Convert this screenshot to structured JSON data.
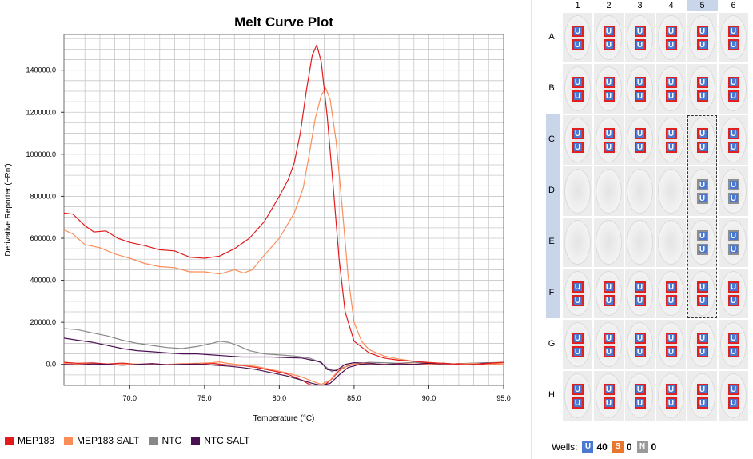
{
  "chart_data": {
    "type": "line",
    "title": "Melt Curve Plot",
    "xlabel": "Temperature (°C)",
    "ylabel": "Derivative Reporter (−Rn')",
    "xlim": [
      65.6,
      95.0
    ],
    "ylim": [
      -10000,
      157000
    ],
    "xticks": [
      70.0,
      75.0,
      80.0,
      85.0,
      90.0,
      95.0
    ],
    "xtick_labels": [
      "70.0",
      "75.0",
      "80.0",
      "85.0",
      "90.0",
      "95.0"
    ],
    "yticks": [
      0,
      20000,
      40000,
      60000,
      80000,
      100000,
      120000,
      140000
    ],
    "ytick_labels": [
      "0.0",
      "20000.0",
      "40000.0",
      "60000.0",
      "80000.0",
      "100000.0",
      "120000.0",
      "140000.0"
    ],
    "grid": true,
    "legend_position": "bottom-left",
    "series": [
      {
        "name": "MEP183",
        "color": "#e31a1c",
        "x": [
          65.6,
          66.2,
          67.0,
          67.6,
          68.4,
          69.2,
          70.0,
          71.0,
          72.0,
          73.0,
          74.0,
          75.0,
          76.0,
          77.0,
          78.0,
          79.0,
          80.0,
          80.6,
          81.0,
          81.4,
          81.8,
          82.2,
          82.5,
          82.8,
          83.2,
          83.6,
          84.0,
          84.4,
          85.0,
          86.0,
          87.0,
          88.0,
          89.0,
          90.0,
          91.0,
          92.0,
          93.0,
          94.0,
          95.0
        ],
        "y": [
          72000,
          71500,
          66000,
          63000,
          63500,
          60000,
          58000,
          56500,
          54500,
          54000,
          51000,
          50500,
          51500,
          55000,
          60000,
          68000,
          80000,
          88000,
          96000,
          110000,
          130000,
          147000,
          152000,
          144000,
          118000,
          85000,
          50000,
          25000,
          11000,
          5500,
          3000,
          2000,
          1500,
          800,
          500,
          0,
          -300,
          500,
          1000
        ]
      },
      {
        "name": "MEP183 SALT",
        "color": "#fc8d59",
        "x": [
          65.6,
          66.2,
          67.0,
          68.0,
          69.0,
          70.0,
          71.0,
          72.0,
          73.0,
          74.0,
          75.0,
          76.0,
          77.0,
          77.6,
          78.2,
          79.0,
          80.0,
          81.0,
          81.6,
          82.0,
          82.4,
          82.8,
          83.1,
          83.4,
          83.8,
          84.2,
          84.6,
          85.0,
          85.5,
          86.0,
          87.0,
          88.0,
          89.0,
          90.0,
          91.0,
          92.0,
          93.0,
          94.0,
          95.0
        ],
        "y": [
          64000,
          62000,
          57000,
          55500,
          52500,
          50500,
          48000,
          46500,
          46000,
          44000,
          44000,
          43000,
          45000,
          43500,
          45000,
          52000,
          60000,
          72000,
          84000,
          100000,
          117000,
          128000,
          131500,
          126000,
          106000,
          75000,
          42000,
          20000,
          11000,
          7000,
          4000,
          2500,
          1500,
          1000,
          300,
          0,
          500,
          0,
          0
        ]
      },
      {
        "name": "NTC",
        "color": "#878787",
        "x": [
          65.6,
          66.5,
          67.5,
          68.5,
          69.5,
          70.5,
          71.5,
          72.5,
          73.5,
          74.5,
          75.5,
          76.0,
          76.6,
          77.2,
          78.0,
          79.0,
          80.0,
          81.0,
          82.0,
          82.6,
          83.0,
          83.5,
          84.0,
          85.0,
          86.0,
          87.0,
          88.0,
          89.0,
          90.0,
          91.0,
          92.0,
          93.0,
          94.0,
          95.0
        ],
        "y": [
          17000,
          16500,
          15000,
          13500,
          11500,
          10000,
          9000,
          8000,
          7500,
          8500,
          10000,
          11000,
          10500,
          9000,
          6500,
          5000,
          4500,
          4000,
          3000,
          1500,
          -500,
          -3500,
          -2000,
          0,
          1000,
          800,
          500,
          1000,
          500,
          0,
          300,
          600,
          800,
          1000
        ]
      },
      {
        "name": "NTC SALT",
        "color": "#4a1152",
        "x": [
          65.6,
          66.5,
          67.5,
          68.5,
          69.5,
          70.5,
          71.5,
          72.5,
          73.5,
          74.5,
          75.5,
          76.5,
          77.5,
          78.5,
          79.5,
          80.5,
          81.5,
          82.2,
          82.8,
          83.2,
          83.8,
          84.4,
          85.0,
          86.0,
          87.0,
          88.0,
          89.0,
          90.0,
          91.0,
          92.0,
          93.0,
          94.0,
          95.0
        ],
        "y": [
          12500,
          11500,
          10500,
          9000,
          7500,
          6500,
          6000,
          5500,
          5000,
          5000,
          4500,
          4000,
          3500,
          3500,
          3500,
          3200,
          3000,
          2000,
          1000,
          -2500,
          -3000,
          0,
          800,
          500,
          0,
          300,
          200,
          0,
          500,
          0,
          300,
          600,
          0
        ]
      },
      {
        "name": "",
        "color": "#e31a1c",
        "x": [
          65.6,
          66.5,
          67.5,
          68.5,
          69.5,
          70.5,
          71.5,
          72.5,
          73.5,
          74.5,
          75.5,
          76.5,
          77.5,
          78.5,
          79.5,
          80.5,
          81.0,
          81.5,
          82.0,
          82.5,
          83.0,
          83.5,
          84.0,
          84.6,
          85.2,
          86.0,
          87.0,
          88.0,
          89.0,
          90.0,
          91.0,
          92.0,
          93.0,
          94.0,
          95.0
        ],
        "y": [
          1000,
          500,
          700,
          200,
          600,
          0,
          400,
          -200,
          300,
          0,
          500,
          -300,
          -500,
          -1500,
          -3000,
          -4500,
          -6000,
          -7500,
          -9500,
          -10500,
          -10000,
          -7000,
          -3000,
          -500,
          0,
          500,
          -300,
          400,
          0,
          600,
          -200,
          300,
          0,
          500,
          200
        ]
      },
      {
        "name": "",
        "color": "#fc8d59",
        "x": [
          65.6,
          66.5,
          67.5,
          68.5,
          69.5,
          70.5,
          71.5,
          72.5,
          73.5,
          74.5,
          75.5,
          76.0,
          76.5,
          77.5,
          78.5,
          79.5,
          80.5,
          81.5,
          82.2,
          82.8,
          83.4,
          84.0,
          84.8,
          85.6,
          86.5,
          87.5,
          88.5,
          89.5,
          90.5,
          91.5,
          92.5,
          93.5,
          94.5,
          95.0
        ],
        "y": [
          500,
          0,
          300,
          -200,
          0,
          200,
          -100,
          0,
          300,
          500,
          800,
          1200,
          500,
          -300,
          -1000,
          -2500,
          -4000,
          -6000,
          -8000,
          -9500,
          -7500,
          -2500,
          0,
          400,
          200,
          0,
          300,
          100,
          0,
          -100,
          200,
          0,
          400,
          300
        ]
      },
      {
        "name": "",
        "color": "#4a1152",
        "x": [
          65.6,
          66.5,
          67.5,
          68.5,
          69.5,
          70.5,
          71.5,
          72.5,
          73.5,
          74.5,
          75.5,
          76.5,
          77.5,
          78.5,
          79.5,
          80.5,
          81.5,
          82.2,
          82.8,
          83.4,
          84.0,
          84.6,
          85.4,
          86.2,
          87.0,
          88.0,
          89.0,
          90.0,
          91.0,
          92.0,
          93.0,
          94.0,
          95.0
        ],
        "y": [
          0,
          -300,
          200,
          0,
          -400,
          0,
          300,
          -200,
          0,
          200,
          -300,
          -800,
          -1500,
          -2500,
          -4000,
          -5500,
          -7500,
          -9000,
          -10000,
          -9000,
          -5000,
          -1500,
          0,
          300,
          -100,
          200,
          0,
          500,
          100,
          0,
          300,
          0,
          -200
        ]
      }
    ]
  },
  "legend": [
    {
      "label": "MEP183",
      "color": "#e31a1c"
    },
    {
      "label": "MEP183 SALT",
      "color": "#fc8d59"
    },
    {
      "label": "NTC",
      "color": "#878787"
    },
    {
      "label": "NTC SALT",
      "color": "#4a1152"
    }
  ],
  "plate": {
    "columns": [
      "1",
      "2",
      "3",
      "4",
      "5",
      "6"
    ],
    "rows": [
      "A",
      "B",
      "C",
      "D",
      "E",
      "F",
      "G",
      "H"
    ],
    "selected_column": "5",
    "selected_rows": [
      "C",
      "D",
      "E",
      "F"
    ],
    "task_icon_letter": "U",
    "wells": {
      "A": [
        "U",
        "U",
        "U",
        "U",
        "U",
        "U"
      ],
      "B": [
        "U",
        "U",
        "U",
        "U",
        "U",
        "U"
      ],
      "C": [
        "U",
        "U",
        "U",
        "U",
        "U",
        "U"
      ],
      "D": [
        "",
        "",
        "",
        "",
        "Ug",
        "Ug"
      ],
      "E": [
        "",
        "",
        "",
        "",
        "Ug",
        "Ug"
      ],
      "F": [
        "U",
        "U",
        "U",
        "U",
        "U",
        "U"
      ],
      "G": [
        "U",
        "U",
        "U",
        "U",
        "U",
        "U"
      ],
      "H": [
        "U",
        "U",
        "U",
        "U",
        "U",
        "U"
      ]
    }
  },
  "footer": {
    "label": "Wells:",
    "items": [
      {
        "icon": "U",
        "color": "#4a78d0",
        "count": "40"
      },
      {
        "icon": "S",
        "color": "#e8762c",
        "count": "0"
      },
      {
        "icon": "N",
        "color": "#9a9a9a",
        "count": "0"
      }
    ]
  }
}
